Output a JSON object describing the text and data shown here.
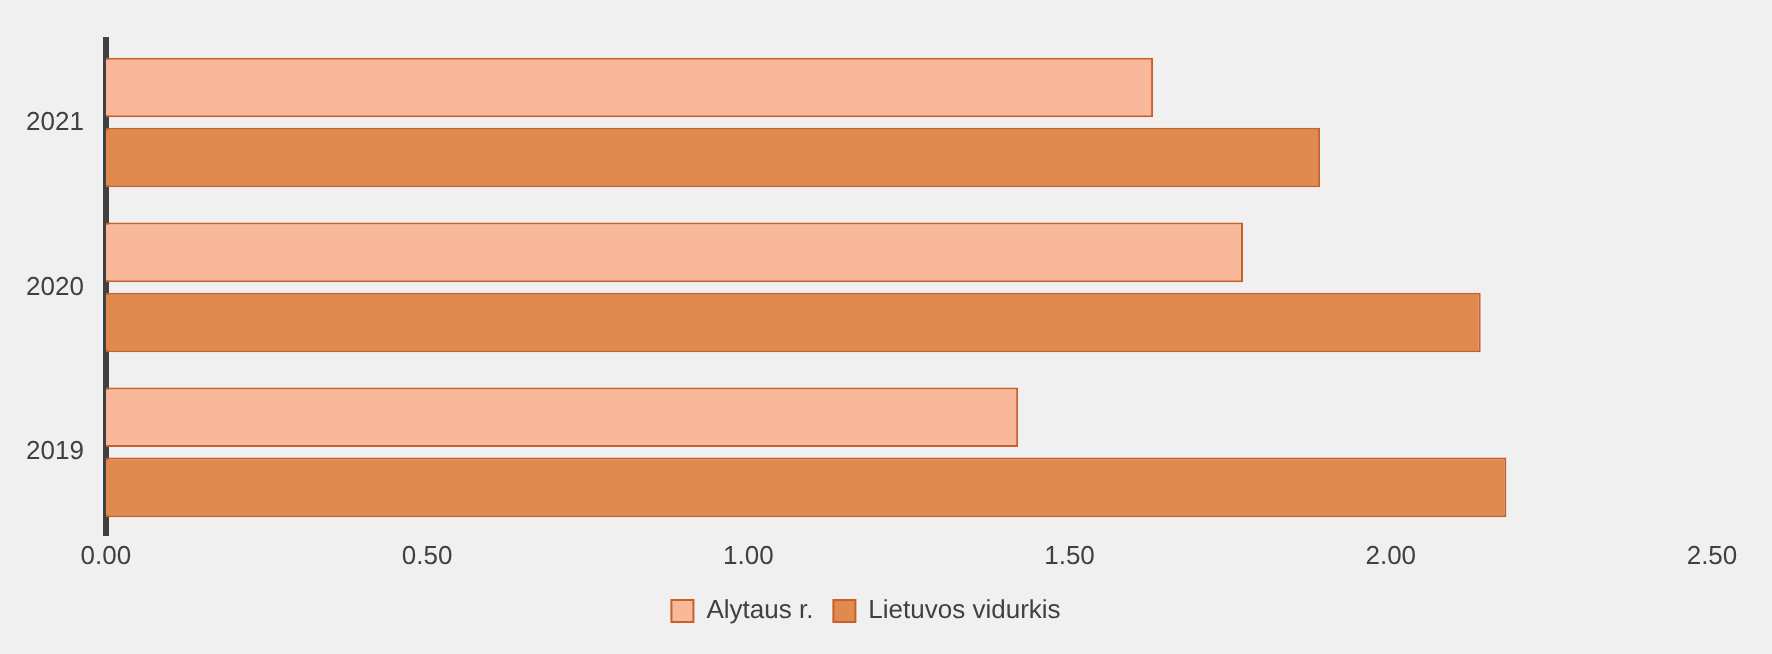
{
  "chart_data": {
    "type": "bar",
    "orientation": "horizontal",
    "categories": [
      "2021",
      "2020",
      "2019"
    ],
    "series": [
      {
        "name": "Alytaus r.",
        "color": "#f9b89a",
        "values": [
          1.63,
          1.77,
          1.42
        ]
      },
      {
        "name": "Lietuvos vidurkis",
        "color": "#e08a50",
        "values": [
          1.89,
          2.14,
          2.18
        ]
      }
    ],
    "xlim": [
      0,
      2.5
    ],
    "xticks": [
      {
        "value": 0,
        "label": "0.00"
      },
      {
        "value": 0.5,
        "label": "0.50"
      },
      {
        "value": 1,
        "label": "1.00"
      },
      {
        "value": 1.5,
        "label": "1.50"
      },
      {
        "value": 2,
        "label": "2.00"
      },
      {
        "value": 2.5,
        "label": "2.50"
      }
    ],
    "grid": false,
    "legend": "bottom"
  }
}
